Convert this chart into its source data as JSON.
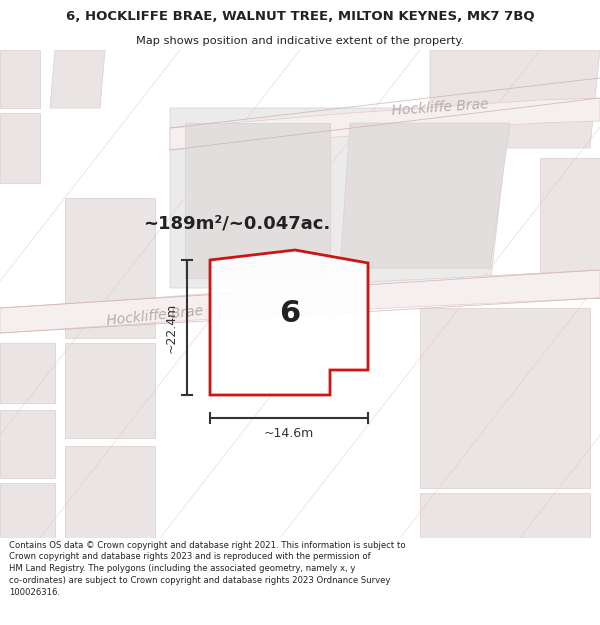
{
  "title_line1": "6, HOCKLIFFE BRAE, WALNUT TREE, MILTON KEYNES, MK7 7BQ",
  "title_line2": "Map shows position and indicative extent of the property.",
  "footer": "Contains OS data © Crown copyright and database right 2021. This information is subject to Crown copyright and database rights 2023 and is reproduced with the permission of HM Land Registry. The polygons (including the associated geometry, namely x, y co-ordinates) are subject to Crown copyright and database rights 2023 Ordnance Survey 100026316.",
  "area_text": "~189m²/~0.047ac.",
  "street_name_left": "Hockliffe Brae",
  "street_name_right": "Hockliffe Brae",
  "house_number": "6",
  "dim_width": "~14.6m",
  "dim_height": "~22.4m",
  "bg_color": "#f7f2f2",
  "road_fill": "#f5efef",
  "road_stroke": "#e8c8c8",
  "building_fill": "#eae4e4",
  "building_stroke": "#dccece",
  "prop_fill": "#f0ecec",
  "red_stroke": "#cc0000",
  "dim_color": "#333333",
  "text_color": "#222222",
  "street_color": "#b8acac",
  "title_bg": "#ffffff",
  "footer_bg": "#ffffff",
  "map_line_color": "#e0c8c8"
}
